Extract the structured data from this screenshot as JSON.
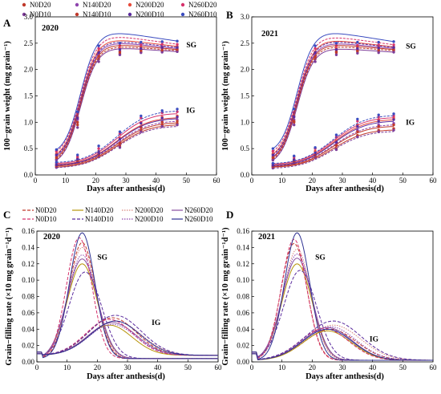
{
  "legend_top": [
    {
      "name": "N0D20",
      "color": "#c0392b",
      "dash": "solid",
      "marker": true
    },
    {
      "name": "N140D20",
      "color": "#8e44ad",
      "dash": "solid",
      "marker": true
    },
    {
      "name": "N200D20",
      "color": "#e74c3c",
      "dash": "solid",
      "marker": true
    },
    {
      "name": "N260D20",
      "color": "#d6336c",
      "dash": "solid",
      "marker": true
    },
    {
      "name": "N0D10",
      "color": "#7d3c98",
      "dash": "solid",
      "marker": true
    },
    {
      "name": "N140D10",
      "color": "#c0392b",
      "dash": "solid",
      "marker": true
    },
    {
      "name": "N200D10",
      "color": "#5b2c9e",
      "dash": "solid",
      "marker": true
    },
    {
      "name": "N260D10",
      "color": "#3b4cc0",
      "dash": "solid",
      "marker": true
    }
  ],
  "legend_bottom": [
    {
      "name": "N0D20",
      "color": "#c0392b",
      "dash": "dash"
    },
    {
      "name": "N140D20",
      "color": "#b7950b",
      "dash": "solid"
    },
    {
      "name": "N200D20",
      "color": "#d98880",
      "dash": "dot"
    },
    {
      "name": "N260D20",
      "color": "#884ea0",
      "dash": "solid"
    },
    {
      "name": "N0D10",
      "color": "#d6336c",
      "dash": "dash"
    },
    {
      "name": "N140D10",
      "color": "#5b2c9e",
      "dash": "dash"
    },
    {
      "name": "N200D10",
      "color": "#8e44ad",
      "dash": "dot"
    },
    {
      "name": "N260D10",
      "color": "#2e3192",
      "dash": "solid"
    }
  ],
  "chart_data": [
    {
      "panel": "A",
      "type": "line",
      "year": "2020",
      "xlabel": "Days after anthesis(d)",
      "ylabel": "100−grain weight (mg grain⁻¹)",
      "xlim": [
        0,
        60
      ],
      "ylim": [
        0,
        3.0
      ],
      "xticks": [
        0,
        10,
        20,
        30,
        40,
        50,
        60
      ],
      "yticks": [
        0.0,
        0.5,
        1.0,
        1.5,
        2.0,
        2.5,
        3.0
      ],
      "annotations": [
        {
          "text": "SG",
          "x": 50,
          "y": 2.42
        },
        {
          "text": "IG",
          "x": 50,
          "y": 1.18
        }
      ],
      "scatter_x": [
        7,
        14,
        21,
        28,
        35,
        42,
        47
      ],
      "series": [
        {
          "name": "N0D20",
          "group": "SG",
          "values": [
            0.3,
            0.95,
            2.2,
            2.3,
            2.34,
            2.35,
            2.36
          ]
        },
        {
          "name": "N140D20",
          "group": "SG",
          "values": [
            0.36,
            1.05,
            2.3,
            2.35,
            2.38,
            2.4,
            2.4
          ]
        },
        {
          "name": "N200D20",
          "group": "SG",
          "values": [
            0.4,
            1.1,
            2.35,
            2.4,
            2.42,
            2.43,
            2.44
          ]
        },
        {
          "name": "N260D20",
          "group": "SG",
          "values": [
            0.45,
            1.15,
            2.4,
            2.45,
            2.47,
            2.48,
            2.48
          ]
        },
        {
          "name": "N0D10",
          "group": "SG",
          "values": [
            0.28,
            0.9,
            2.15,
            2.28,
            2.32,
            2.33,
            2.34
          ]
        },
        {
          "name": "N140D10",
          "group": "SG",
          "values": [
            0.33,
            1.0,
            2.25,
            2.33,
            2.36,
            2.37,
            2.38
          ]
        },
        {
          "name": "N200D10",
          "group": "SG",
          "values": [
            0.38,
            1.08,
            2.32,
            2.38,
            2.4,
            2.42,
            2.42
          ]
        },
        {
          "name": "N260D10",
          "group": "SG",
          "values": [
            0.48,
            1.2,
            2.45,
            2.5,
            2.52,
            2.53,
            2.54
          ]
        },
        {
          "name": "N0D20",
          "group": "IG",
          "values": [
            0.15,
            0.25,
            0.35,
            0.55,
            0.85,
            0.95,
            0.98
          ]
        },
        {
          "name": "N140D20",
          "group": "IG",
          "values": [
            0.18,
            0.28,
            0.4,
            0.62,
            0.92,
            1.02,
            1.05
          ]
        },
        {
          "name": "N200D20",
          "group": "IG",
          "values": [
            0.2,
            0.32,
            0.45,
            0.7,
            1.0,
            1.1,
            1.12
          ]
        },
        {
          "name": "N260D20",
          "group": "IG",
          "values": [
            0.22,
            0.35,
            0.5,
            0.78,
            1.08,
            1.18,
            1.2
          ]
        },
        {
          "name": "N0D10",
          "group": "IG",
          "values": [
            0.14,
            0.24,
            0.34,
            0.52,
            0.82,
            0.92,
            0.95
          ]
        },
        {
          "name": "N140D10",
          "group": "IG",
          "values": [
            0.17,
            0.27,
            0.38,
            0.6,
            0.9,
            1.0,
            1.02
          ]
        },
        {
          "name": "N200D10",
          "group": "IG",
          "values": [
            0.19,
            0.3,
            0.43,
            0.68,
            0.98,
            1.08,
            1.1
          ]
        },
        {
          "name": "N260D10",
          "group": "IG",
          "values": [
            0.24,
            0.38,
            0.55,
            0.82,
            1.12,
            1.22,
            1.25
          ]
        }
      ]
    },
    {
      "panel": "B",
      "type": "line",
      "year": "2021",
      "xlabel": "Days after anthesis(d)",
      "ylabel": "100−grain weight (mg grain⁻¹)",
      "xlim": [
        0,
        60
      ],
      "ylim": [
        0,
        3.0
      ],
      "xticks": [
        0,
        10,
        20,
        30,
        40,
        50,
        60
      ],
      "yticks": [
        0.0,
        0.5,
        1.0,
        1.5,
        2.0,
        2.5,
        3.0
      ],
      "annotations": [
        {
          "text": "SG",
          "x": 51,
          "y": 2.4
        },
        {
          "text": "IG",
          "x": 51,
          "y": 0.95
        }
      ],
      "scatter_x": [
        7,
        14,
        21,
        28,
        35,
        42,
        47
      ],
      "series": [
        {
          "name": "N0D20",
          "group": "SG",
          "values": [
            0.3,
            1.0,
            2.2,
            2.32,
            2.34,
            2.35,
            2.36
          ]
        },
        {
          "name": "N140D20",
          "group": "SG",
          "values": [
            0.35,
            1.05,
            2.28,
            2.36,
            2.38,
            2.39,
            2.4
          ]
        },
        {
          "name": "N200D20",
          "group": "SG",
          "values": [
            0.4,
            1.12,
            2.34,
            2.4,
            2.42,
            2.43,
            2.43
          ]
        },
        {
          "name": "N260D20",
          "group": "SG",
          "values": [
            0.45,
            1.18,
            2.4,
            2.45,
            2.46,
            2.47,
            2.47
          ]
        },
        {
          "name": "N0D10",
          "group": "SG",
          "values": [
            0.28,
            0.95,
            2.15,
            2.28,
            2.31,
            2.32,
            2.33
          ]
        },
        {
          "name": "N140D10",
          "group": "SG",
          "values": [
            0.33,
            1.02,
            2.24,
            2.34,
            2.36,
            2.37,
            2.38
          ]
        },
        {
          "name": "N200D10",
          "group": "SG",
          "values": [
            0.38,
            1.1,
            2.32,
            2.38,
            2.4,
            2.41,
            2.42
          ]
        },
        {
          "name": "N260D10",
          "group": "SG",
          "values": [
            0.5,
            1.25,
            2.45,
            2.5,
            2.52,
            2.52,
            2.53
          ]
        },
        {
          "name": "N0D20",
          "group": "IG",
          "values": [
            0.15,
            0.25,
            0.35,
            0.5,
            0.75,
            0.85,
            0.88
          ]
        },
        {
          "name": "N140D20",
          "group": "IG",
          "values": [
            0.17,
            0.28,
            0.4,
            0.58,
            0.85,
            0.95,
            0.98
          ]
        },
        {
          "name": "N200D20",
          "group": "IG",
          "values": [
            0.19,
            0.3,
            0.45,
            0.65,
            0.95,
            1.05,
            1.08
          ]
        },
        {
          "name": "N260D20",
          "group": "IG",
          "values": [
            0.21,
            0.34,
            0.5,
            0.72,
            1.02,
            1.1,
            1.12
          ]
        },
        {
          "name": "N0D10",
          "group": "IG",
          "values": [
            0.13,
            0.23,
            0.33,
            0.48,
            0.72,
            0.82,
            0.85
          ]
        },
        {
          "name": "N140D10",
          "group": "IG",
          "values": [
            0.16,
            0.26,
            0.38,
            0.56,
            0.82,
            0.92,
            0.95
          ]
        },
        {
          "name": "N200D10",
          "group": "IG",
          "values": [
            0.18,
            0.29,
            0.42,
            0.62,
            0.92,
            1.02,
            1.05
          ]
        },
        {
          "name": "N260D10",
          "group": "IG",
          "values": [
            0.22,
            0.36,
            0.52,
            0.76,
            1.06,
            1.14,
            1.16
          ]
        }
      ]
    },
    {
      "panel": "C",
      "type": "line",
      "year": "2020",
      "xlabel": "Days after anthesis(d)",
      "ylabel": "Grain−filling rate (×10 mg grain⁻¹d⁻¹)",
      "xlim": [
        0,
        60
      ],
      "ylim": [
        0,
        0.16
      ],
      "xticks": [
        0,
        10,
        20,
        30,
        40,
        50,
        60
      ],
      "yticks": [
        0.0,
        0.02,
        0.04,
        0.06,
        0.08,
        0.1,
        0.12,
        0.14,
        0.16
      ],
      "annotations": [
        {
          "text": "SG",
          "x": 20,
          "y": 0.125
        },
        {
          "text": "IG",
          "x": 38,
          "y": 0.045
        }
      ],
      "series": [
        {
          "name": "N0D20",
          "group": "SG",
          "peak_x": 15,
          "peak_y": 0.146,
          "width": 4.4,
          "tail": 0.004
        },
        {
          "name": "N140D20",
          "group": "SG",
          "peak_x": 15,
          "peak_y": 0.12,
          "width": 5.0,
          "tail": 0.004
        },
        {
          "name": "N200D20",
          "group": "SG",
          "peak_x": 15,
          "peak_y": 0.14,
          "width": 4.6,
          "tail": 0.004
        },
        {
          "name": "N260D20",
          "group": "SG",
          "peak_x": 15,
          "peak_y": 0.126,
          "width": 5.0,
          "tail": 0.004
        },
        {
          "name": "N0D10",
          "group": "SG",
          "peak_x": 14,
          "peak_y": 0.152,
          "width": 4.2,
          "tail": 0.004
        },
        {
          "name": "N140D10",
          "group": "SG",
          "peak_x": 16,
          "peak_y": 0.11,
          "width": 5.4,
          "tail": 0.004
        },
        {
          "name": "N200D10",
          "group": "SG",
          "peak_x": 15,
          "peak_y": 0.131,
          "width": 4.8,
          "tail": 0.004
        },
        {
          "name": "N260D10",
          "group": "SG",
          "peak_x": 15,
          "peak_y": 0.158,
          "width": 4.2,
          "tail": 0.004
        },
        {
          "name": "N0D20",
          "group": "IG",
          "peak_x": 25,
          "peak_y": 0.054,
          "width": 8.0,
          "tail": 0.008
        },
        {
          "name": "N140D20",
          "group": "IG",
          "peak_x": 24,
          "peak_y": 0.045,
          "width": 7.5,
          "tail": 0.008
        },
        {
          "name": "N200D20",
          "group": "IG",
          "peak_x": 26,
          "peak_y": 0.05,
          "width": 8.5,
          "tail": 0.008
        },
        {
          "name": "N260D20",
          "group": "IG",
          "peak_x": 25,
          "peak_y": 0.048,
          "width": 8.0,
          "tail": 0.008
        },
        {
          "name": "N0D10",
          "group": "IG",
          "peak_x": 24,
          "peak_y": 0.052,
          "width": 7.8,
          "tail": 0.008
        },
        {
          "name": "N140D10",
          "group": "IG",
          "peak_x": 26,
          "peak_y": 0.057,
          "width": 8.5,
          "tail": 0.008
        },
        {
          "name": "N200D10",
          "group": "IG",
          "peak_x": 25,
          "peak_y": 0.046,
          "width": 7.8,
          "tail": 0.008
        },
        {
          "name": "N260D10",
          "group": "IG",
          "peak_x": 26,
          "peak_y": 0.05,
          "width": 8.2,
          "tail": 0.008
        }
      ]
    },
    {
      "panel": "D",
      "type": "line",
      "year": "2021",
      "xlabel": "Days after anthesis(d)",
      "ylabel": "Grain−filling rate (×10 mg grain⁻¹d⁻¹)",
      "xlim": [
        0,
        60
      ],
      "ylim": [
        0,
        0.16
      ],
      "xticks": [
        0,
        10,
        20,
        30,
        40,
        50,
        60
      ],
      "yticks": [
        0.0,
        0.02,
        0.04,
        0.06,
        0.08,
        0.1,
        0.12,
        0.14,
        0.16
      ],
      "annotations": [
        {
          "text": "SG",
          "x": 21,
          "y": 0.125
        },
        {
          "text": "IG",
          "x": 39,
          "y": 0.025
        }
      ],
      "series": [
        {
          "name": "N0D20",
          "group": "SG",
          "peak_x": 14,
          "peak_y": 0.145,
          "width": 4.3,
          "tail": 0.002
        },
        {
          "name": "N140D20",
          "group": "SG",
          "peak_x": 15,
          "peak_y": 0.12,
          "width": 5.0,
          "tail": 0.002
        },
        {
          "name": "N200D20",
          "group": "SG",
          "peak_x": 15,
          "peak_y": 0.138,
          "width": 4.6,
          "tail": 0.002
        },
        {
          "name": "N260D20",
          "group": "SG",
          "peak_x": 15,
          "peak_y": 0.127,
          "width": 5.0,
          "tail": 0.002
        },
        {
          "name": "N0D10",
          "group": "SG",
          "peak_x": 14,
          "peak_y": 0.15,
          "width": 4.2,
          "tail": 0.002
        },
        {
          "name": "N140D10",
          "group": "SG",
          "peak_x": 16,
          "peak_y": 0.112,
          "width": 5.4,
          "tail": 0.002
        },
        {
          "name": "N200D10",
          "group": "SG",
          "peak_x": 15,
          "peak_y": 0.132,
          "width": 4.8,
          "tail": 0.002
        },
        {
          "name": "N260D10",
          "group": "SG",
          "peak_x": 15,
          "peak_y": 0.158,
          "width": 4.2,
          "tail": 0.002
        },
        {
          "name": "N0D20",
          "group": "IG",
          "peak_x": 26,
          "peak_y": 0.04,
          "width": 8.5,
          "tail": 0.002
        },
        {
          "name": "N140D20",
          "group": "IG",
          "peak_x": 25,
          "peak_y": 0.038,
          "width": 8.0,
          "tail": 0.002
        },
        {
          "name": "N200D20",
          "group": "IG",
          "peak_x": 27,
          "peak_y": 0.045,
          "width": 9.0,
          "tail": 0.002
        },
        {
          "name": "N260D20",
          "group": "IG",
          "peak_x": 25,
          "peak_y": 0.042,
          "width": 8.2,
          "tail": 0.002
        },
        {
          "name": "N0D10",
          "group": "IG",
          "peak_x": 24,
          "peak_y": 0.041,
          "width": 8.0,
          "tail": 0.002
        },
        {
          "name": "N140D10",
          "group": "IG",
          "peak_x": 27,
          "peak_y": 0.05,
          "width": 9.2,
          "tail": 0.002
        },
        {
          "name": "N200D10",
          "group": "IG",
          "peak_x": 26,
          "peak_y": 0.043,
          "width": 8.5,
          "tail": 0.002
        },
        {
          "name": "N260D10",
          "group": "IG",
          "peak_x": 25,
          "peak_y": 0.04,
          "width": 8.2,
          "tail": 0.002
        }
      ]
    }
  ]
}
